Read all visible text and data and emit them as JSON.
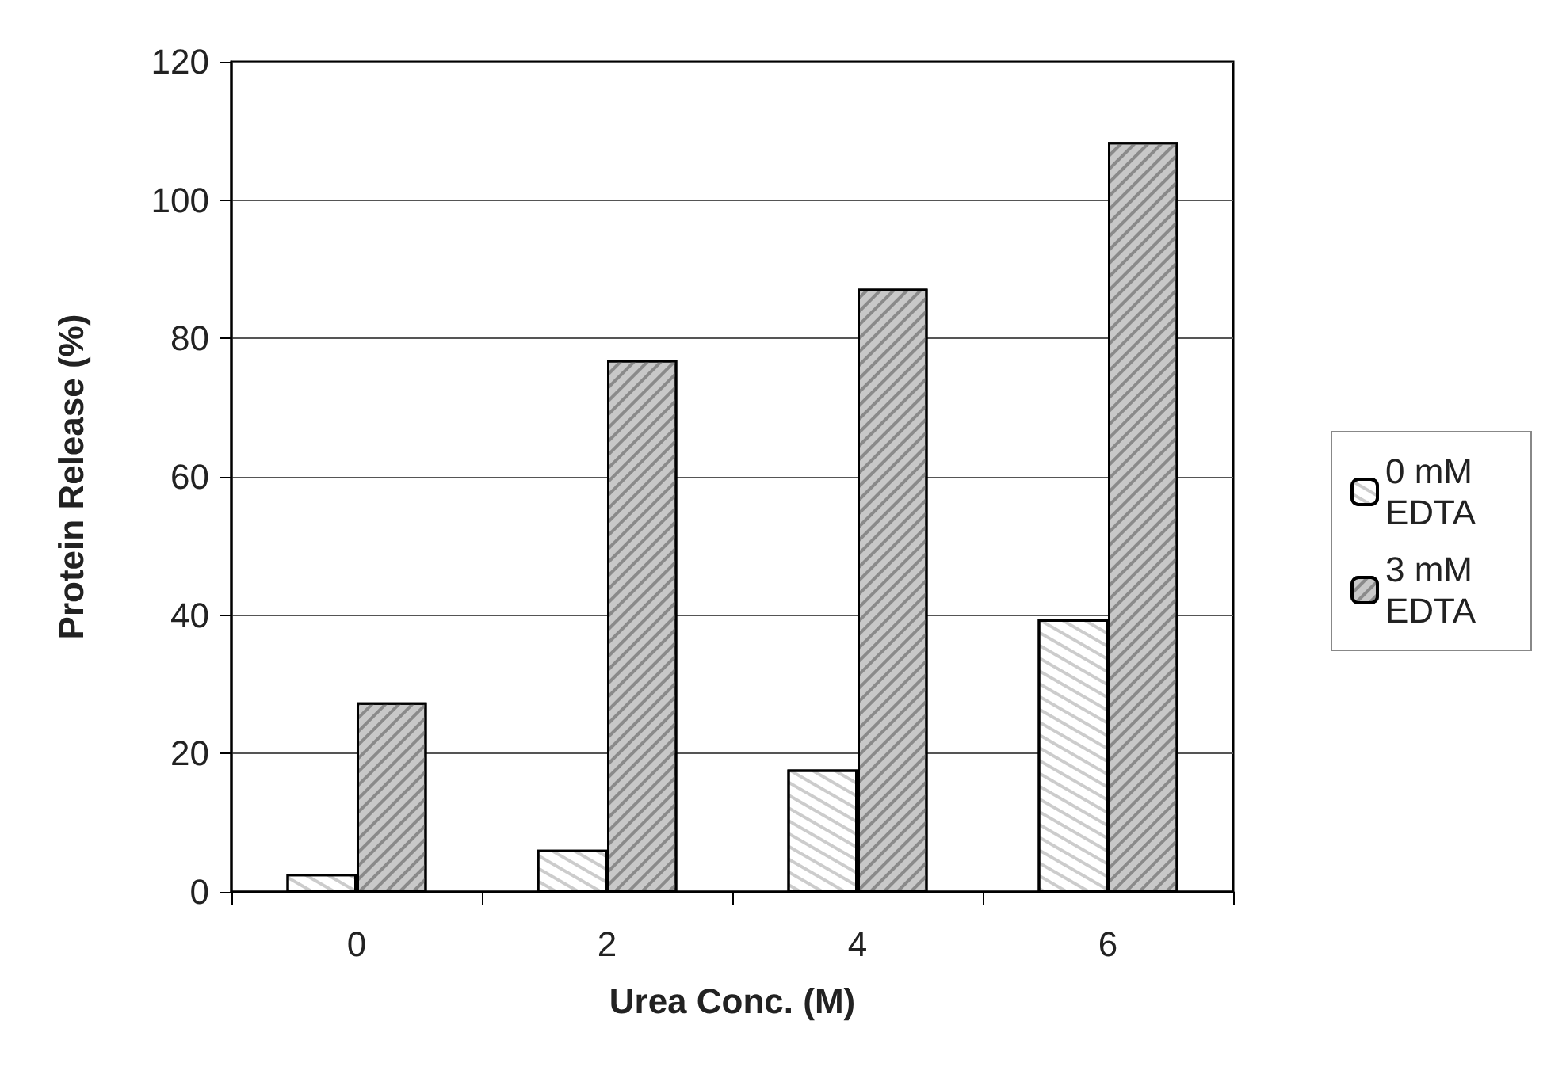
{
  "chart_data": {
    "type": "bar",
    "xlabel": "Urea Conc. (M)",
    "ylabel": "Protein Release (%)",
    "categories": [
      "0",
      "2",
      "4",
      "6"
    ],
    "series": [
      {
        "name": "0 mM EDTA",
        "color": "#ffffff",
        "values": [
          2.6,
          6.1,
          17.7,
          39.4
        ]
      },
      {
        "name": "3 mM EDTA",
        "color": "#c8c8c8",
        "values": [
          27.4,
          76.9,
          87.2,
          108.4
        ]
      }
    ],
    "ylim": [
      0,
      120
    ],
    "yticks": [
      0,
      20,
      40,
      60,
      80,
      100,
      120
    ],
    "grid": "y",
    "legend": "right"
  }
}
